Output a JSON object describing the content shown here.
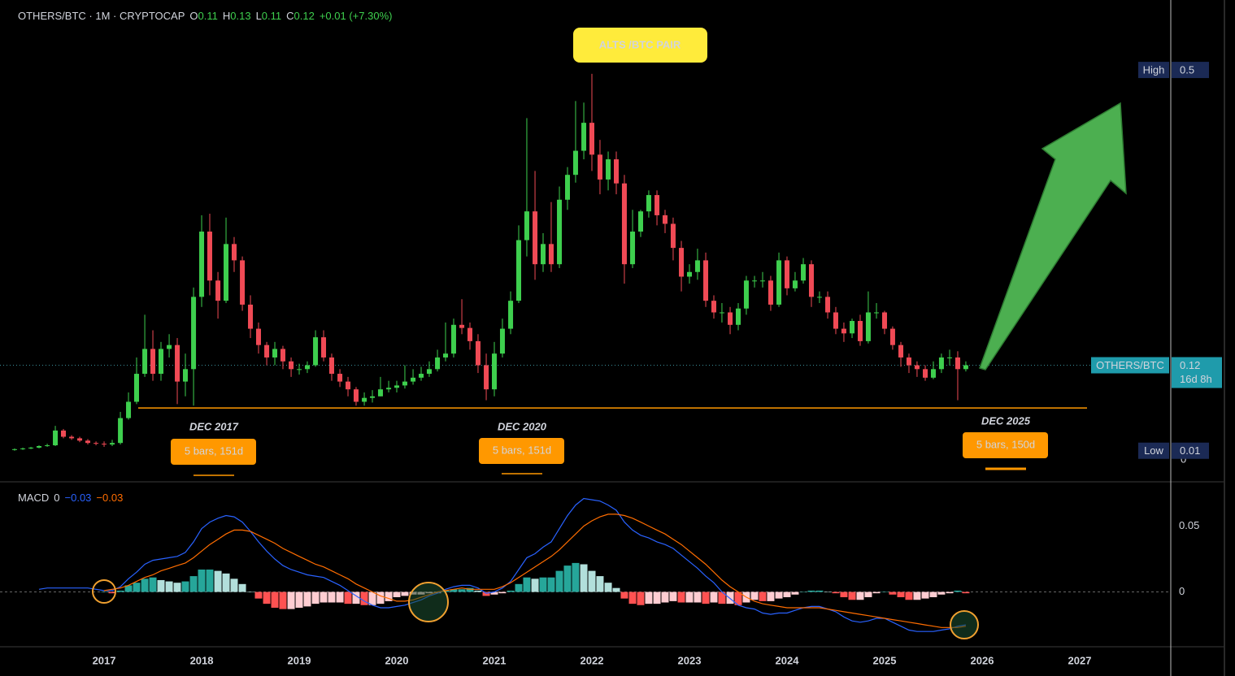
{
  "chart_data": [
    {
      "type": "candlestick",
      "header": {
        "symbol": "OTHERS/BTC · 1M · CRYPTOCAP",
        "ohlc": [
          {
            "key": "O",
            "value": 0.11
          },
          {
            "key": "H",
            "value": 0.13
          },
          {
            "key": "L",
            "value": 0.11
          },
          {
            "key": "C",
            "value": 0.12
          }
        ],
        "change": "+0.01 (+7.30%)"
      },
      "x": [
        2016.083,
        2016.167,
        2016.25,
        2016.333,
        2016.417,
        2016.5,
        2016.583,
        2016.667,
        2016.75,
        2016.833,
        2016.917,
        2017,
        2017.083,
        2017.167,
        2017.25,
        2017.333,
        2017.417,
        2017.5,
        2017.583,
        2017.667,
        2017.75,
        2017.833,
        2017.917,
        2018,
        2018.083,
        2018.167,
        2018.25,
        2018.333,
        2018.417,
        2018.5,
        2018.583,
        2018.667,
        2018.75,
        2018.833,
        2018.917,
        2019,
        2019.083,
        2019.167,
        2019.25,
        2019.333,
        2019.417,
        2019.5,
        2019.583,
        2019.667,
        2019.75,
        2019.833,
        2019.917,
        2020,
        2020.083,
        2020.167,
        2020.25,
        2020.333,
        2020.417,
        2020.5,
        2020.583,
        2020.667,
        2020.75,
        2020.833,
        2020.917,
        2021,
        2021.083,
        2021.167,
        2021.25,
        2021.333,
        2021.417,
        2021.5,
        2021.583,
        2021.667,
        2021.75,
        2021.833,
        2021.917,
        2022,
        2022.083,
        2022.167,
        2022.25,
        2022.333,
        2022.417,
        2022.5,
        2022.583,
        2022.667,
        2022.75,
        2022.833,
        2022.917,
        2023,
        2023.083,
        2023.167,
        2023.25,
        2023.333,
        2023.417,
        2023.5,
        2023.583,
        2023.667,
        2023.75,
        2023.833,
        2023.917,
        2024,
        2024.083,
        2024.167,
        2024.25,
        2024.333,
        2024.417,
        2024.5,
        2024.583,
        2024.667,
        2024.75,
        2024.833,
        2024.917,
        2025,
        2025.083,
        2025.167,
        2025.25,
        2025.333,
        2025.417,
        2025.5,
        2025.583,
        2025.667,
        2025.75,
        2025.833
      ],
      "open": [
        0.011,
        0.012,
        0.013,
        0.014,
        0.016,
        0.017,
        0.036,
        0.028,
        0.026,
        0.023,
        0.02,
        0.019,
        0.018,
        0.02,
        0.052,
        0.073,
        0.109,
        0.141,
        0.109,
        0.141,
        0.146,
        0.099,
        0.115,
        0.208,
        0.292,
        0.229,
        0.203,
        0.276,
        0.255,
        0.198,
        0.167,
        0.146,
        0.13,
        0.141,
        0.125,
        0.115,
        0.115,
        0.12,
        0.156,
        0.13,
        0.109,
        0.099,
        0.089,
        0.073,
        0.078,
        0.08,
        0.089,
        0.091,
        0.094,
        0.099,
        0.104,
        0.109,
        0.115,
        0.13,
        0.135,
        0.172,
        0.168,
        0.151,
        0.12,
        0.089,
        0.135,
        0.167,
        0.203,
        0.281,
        0.318,
        0.25,
        0.276,
        0.25,
        0.333,
        0.365,
        0.396,
        0.432,
        0.391,
        0.359,
        0.385,
        0.354,
        0.25,
        0.292,
        0.318,
        0.339,
        0.313,
        0.302,
        0.271,
        0.234,
        0.24,
        0.255,
        0.203,
        0.188,
        0.188,
        0.172,
        0.193,
        0.229,
        0.229,
        0.229,
        0.198,
        0.255,
        0.219,
        0.229,
        0.25,
        0.208,
        0.208,
        0.188,
        0.167,
        0.161,
        0.177,
        0.151,
        0.188,
        0.188,
        0.167,
        0.146,
        0.13,
        0.12,
        0.115,
        0.104,
        0.115,
        0.13,
        0.13,
        0.115
      ],
      "high": [
        0.013,
        0.014,
        0.015,
        0.017,
        0.019,
        0.042,
        0.038,
        0.03,
        0.028,
        0.025,
        0.022,
        0.022,
        0.024,
        0.06,
        0.085,
        0.13,
        0.185,
        0.165,
        0.15,
        0.16,
        0.155,
        0.135,
        0.22,
        0.313,
        0.315,
        0.24,
        0.31,
        0.285,
        0.26,
        0.21,
        0.175,
        0.15,
        0.15,
        0.145,
        0.13,
        0.122,
        0.125,
        0.165,
        0.165,
        0.135,
        0.115,
        0.105,
        0.092,
        0.085,
        0.088,
        0.105,
        0.1,
        0.1,
        0.12,
        0.115,
        0.118,
        0.125,
        0.14,
        0.175,
        0.18,
        0.205,
        0.175,
        0.16,
        0.135,
        0.15,
        0.18,
        0.215,
        0.3,
        0.438,
        0.37,
        0.29,
        0.33,
        0.35,
        0.375,
        0.46,
        0.458,
        0.495,
        0.41,
        0.395,
        0.395,
        0.365,
        0.32,
        0.32,
        0.345,
        0.345,
        0.32,
        0.31,
        0.28,
        0.25,
        0.27,
        0.265,
        0.21,
        0.2,
        0.195,
        0.2,
        0.235,
        0.235,
        0.24,
        0.235,
        0.265,
        0.26,
        0.24,
        0.258,
        0.255,
        0.215,
        0.215,
        0.195,
        0.175,
        0.18,
        0.185,
        0.215,
        0.2,
        0.19,
        0.17,
        0.15,
        0.135,
        0.125,
        0.12,
        0.125,
        0.135,
        0.14,
        0.138,
        0.125
      ],
      "low": [
        0.01,
        0.011,
        0.012,
        0.013,
        0.015,
        0.016,
        0.026,
        0.024,
        0.021,
        0.018,
        0.017,
        0.015,
        0.016,
        0.018,
        0.05,
        0.07,
        0.105,
        0.1,
        0.1,
        0.13,
        0.07,
        0.08,
        0.068,
        0.195,
        0.21,
        0.18,
        0.2,
        0.24,
        0.19,
        0.155,
        0.135,
        0.12,
        0.12,
        0.115,
        0.105,
        0.108,
        0.11,
        0.118,
        0.125,
        0.1,
        0.092,
        0.08,
        0.068,
        0.068,
        0.072,
        0.08,
        0.085,
        0.085,
        0.09,
        0.095,
        0.1,
        0.105,
        0.112,
        0.125,
        0.13,
        0.16,
        0.14,
        0.11,
        0.075,
        0.08,
        0.13,
        0.16,
        0.2,
        0.26,
        0.23,
        0.24,
        0.24,
        0.245,
        0.32,
        0.355,
        0.385,
        0.37,
        0.34,
        0.345,
        0.34,
        0.225,
        0.245,
        0.285,
        0.31,
        0.3,
        0.29,
        0.255,
        0.215,
        0.225,
        0.23,
        0.195,
        0.18,
        0.175,
        0.16,
        0.165,
        0.185,
        0.22,
        0.22,
        0.19,
        0.195,
        0.21,
        0.215,
        0.225,
        0.195,
        0.2,
        0.18,
        0.16,
        0.15,
        0.155,
        0.145,
        0.148,
        0.18,
        0.16,
        0.14,
        0.118,
        0.11,
        0.105,
        0.1,
        0.102,
        0.11,
        0.12,
        0.075,
        0.112
      ],
      "close": [
        0.012,
        0.013,
        0.014,
        0.016,
        0.017,
        0.036,
        0.028,
        0.026,
        0.023,
        0.02,
        0.019,
        0.018,
        0.02,
        0.052,
        0.073,
        0.109,
        0.141,
        0.109,
        0.141,
        0.146,
        0.099,
        0.115,
        0.208,
        0.292,
        0.229,
        0.203,
        0.276,
        0.255,
        0.198,
        0.167,
        0.146,
        0.13,
        0.141,
        0.125,
        0.115,
        0.115,
        0.12,
        0.156,
        0.13,
        0.109,
        0.099,
        0.089,
        0.073,
        0.078,
        0.08,
        0.089,
        0.091,
        0.094,
        0.099,
        0.104,
        0.109,
        0.115,
        0.13,
        0.135,
        0.172,
        0.168,
        0.151,
        0.12,
        0.089,
        0.135,
        0.167,
        0.203,
        0.281,
        0.318,
        0.25,
        0.276,
        0.25,
        0.333,
        0.365,
        0.396,
        0.432,
        0.391,
        0.359,
        0.385,
        0.354,
        0.25,
        0.292,
        0.318,
        0.339,
        0.313,
        0.302,
        0.271,
        0.234,
        0.24,
        0.255,
        0.203,
        0.188,
        0.188,
        0.172,
        0.193,
        0.229,
        0.229,
        0.229,
        0.198,
        0.255,
        0.219,
        0.229,
        0.25,
        0.208,
        0.208,
        0.188,
        0.167,
        0.161,
        0.177,
        0.151,
        0.188,
        0.188,
        0.167,
        0.146,
        0.13,
        0.12,
        0.115,
        0.104,
        0.115,
        0.13,
        0.13,
        0.115,
        0.12
      ],
      "up_color": "#3ecf4e",
      "down_color": "#f04a55",
      "xlim": [
        2015.933,
        2027.917
      ],
      "xticks": [
        2017,
        2018,
        2019,
        2020,
        2021,
        2022,
        2023,
        2024,
        2025,
        2026,
        2027
      ],
      "ylim": [
        -0.03,
        0.59
      ],
      "yticks": [
        0
      ],
      "support_level": 0.065,
      "support_color": "#ff9800",
      "badges": [
        {
          "label": "High",
          "value": 0.5,
          "color": "#1b2a55"
        },
        {
          "label": "OTHERS/BTC",
          "value": 0.12,
          "countdown": "16d 8h",
          "color": "#1f9bab"
        },
        {
          "label": "Low",
          "value": 0.01,
          "color": "#1b2a55"
        }
      ],
      "annotations": {
        "title_box": "ALTS /BTC PAIR",
        "periods": [
          {
            "label": "DEC 2017",
            "duration": "5 bars, 151d"
          },
          {
            "label": "DEC 2020",
            "duration": "5 bars, 151d"
          },
          {
            "label": "DEC 2025",
            "duration": "5 bars, 150d"
          }
        ]
      }
    },
    {
      "type": "macd",
      "header": {
        "name": "MACD",
        "source": "0",
        "macd": "−0.03",
        "signal": "−0.03"
      },
      "ylim": [
        -0.041,
        0.083
      ],
      "yticks": [
        0,
        0.05
      ],
      "series": [
        {
          "name": "MACD",
          "color": "#2962ff",
          "values": [
            null,
            null,
            null,
            0.002,
            0.003,
            0.003,
            0.003,
            0.003,
            0.003,
            0.003,
            0.002,
            0.001,
            0.001,
            0.004,
            0.01,
            0.015,
            0.021,
            0.024,
            0.025,
            0.026,
            0.027,
            0.03,
            0.038,
            0.048,
            0.053,
            0.056,
            0.058,
            0.057,
            0.053,
            0.046,
            0.038,
            0.031,
            0.025,
            0.02,
            0.017,
            0.015,
            0.013,
            0.012,
            0.011,
            0.008,
            0.005,
            0.001,
            -0.003,
            -0.007,
            -0.01,
            -0.012,
            -0.012,
            -0.011,
            -0.01,
            -0.008,
            -0.006,
            -0.003,
            -0.001,
            0.002,
            0.004,
            0.005,
            0.005,
            0.003,
            -0.001,
            0,
            0.003,
            0.008,
            0.017,
            0.026,
            0.029,
            0.034,
            0.038,
            0.048,
            0.058,
            0.066,
            0.071,
            0.07,
            0.069,
            0.066,
            0.062,
            0.053,
            0.047,
            0.043,
            0.041,
            0.038,
            0.036,
            0.033,
            0.028,
            0.023,
            0.018,
            0.012,
            0.007,
            0,
            -0.005,
            -0.01,
            -0.012,
            -0.013,
            -0.016,
            -0.017,
            -0.016,
            -0.016,
            -0.014,
            -0.012,
            -0.011,
            -0.011,
            -0.013,
            -0.015,
            -0.019,
            -0.022,
            -0.023,
            -0.022,
            -0.02,
            -0.02,
            -0.023,
            -0.026,
            -0.029,
            -0.03,
            -0.03,
            -0.03,
            -0.029,
            -0.028,
            -0.026,
            -0.025
          ]
        },
        {
          "name": "Signal",
          "color": "#ff6d00",
          "values": [
            null,
            null,
            null,
            null,
            null,
            null,
            null,
            null,
            null,
            null,
            null,
            0.001,
            0.002,
            0.003,
            0.005,
            0.008,
            0.011,
            0.013,
            0.016,
            0.018,
            0.02,
            0.022,
            0.026,
            0.031,
            0.036,
            0.04,
            0.044,
            0.047,
            0.047,
            0.046,
            0.043,
            0.04,
            0.037,
            0.033,
            0.03,
            0.027,
            0.024,
            0.021,
            0.019,
            0.016,
            0.013,
            0.01,
            0.006,
            0.003,
            0,
            -0.003,
            -0.005,
            -0.007,
            -0.007,
            -0.006,
            -0.004,
            -0.002,
            0,
            0.001,
            0.002,
            0.003,
            0.002,
            0.002,
            0.002,
            0.002,
            0.004,
            0.007,
            0.011,
            0.015,
            0.019,
            0.023,
            0.027,
            0.032,
            0.038,
            0.044,
            0.05,
            0.054,
            0.057,
            0.059,
            0.059,
            0.058,
            0.056,
            0.053,
            0.05,
            0.047,
            0.044,
            0.04,
            0.036,
            0.031,
            0.026,
            0.021,
            0.015,
            0.009,
            0.004,
            0,
            -0.004,
            -0.007,
            -0.009,
            -0.01,
            -0.011,
            -0.012,
            -0.012,
            -0.012,
            -0.012,
            -0.012,
            -0.013,
            -0.014,
            -0.015,
            -0.016,
            -0.017,
            -0.018,
            -0.019,
            -0.02,
            -0.021,
            -0.022,
            -0.023,
            -0.024,
            -0.025,
            -0.026,
            -0.027,
            -0.027,
            -0.027,
            -0.026
          ]
        },
        {
          "name": "Histogram",
          "values": [
            null,
            null,
            null,
            null,
            null,
            null,
            null,
            null,
            null,
            null,
            null,
            0,
            -0.001,
            0.001,
            0.005,
            0.007,
            0.01,
            0.011,
            0.009,
            0.008,
            0.007,
            0.008,
            0.012,
            0.017,
            0.017,
            0.016,
            0.014,
            0.01,
            0.006,
            0,
            -0.005,
            -0.009,
            -0.012,
            -0.013,
            -0.013,
            -0.012,
            -0.011,
            -0.009,
            -0.008,
            -0.008,
            -0.008,
            -0.009,
            -0.009,
            -0.01,
            -0.01,
            -0.009,
            -0.007,
            -0.004,
            -0.003,
            -0.002,
            -0.002,
            -0.001,
            -0.001,
            0.001,
            0.002,
            0.002,
            0.003,
            0.001,
            -0.003,
            -0.002,
            -0.001,
            0.001,
            0.006,
            0.011,
            0.01,
            0.011,
            0.011,
            0.016,
            0.02,
            0.022,
            0.021,
            0.016,
            0.012,
            0.007,
            0.003,
            -0.005,
            -0.009,
            -0.01,
            -0.009,
            -0.009,
            -0.008,
            -0.007,
            -0.008,
            -0.008,
            -0.008,
            -0.009,
            -0.008,
            -0.009,
            -0.009,
            -0.01,
            -0.008,
            -0.006,
            -0.007,
            -0.007,
            -0.005,
            -0.004,
            -0.002,
            0,
            0.001,
            0.001,
            0,
            -0.001,
            -0.004,
            -0.006,
            -0.006,
            -0.004,
            -0.001,
            0,
            -0.002,
            -0.004,
            -0.006,
            -0.006,
            -0.005,
            -0.004,
            -0.002,
            -0.001,
            0.001,
            -0.001
          ],
          "colors": [
            "#26a69a",
            "#b2dfdb",
            "#ff5252",
            "#ffcdd2"
          ]
        }
      ]
    }
  ]
}
